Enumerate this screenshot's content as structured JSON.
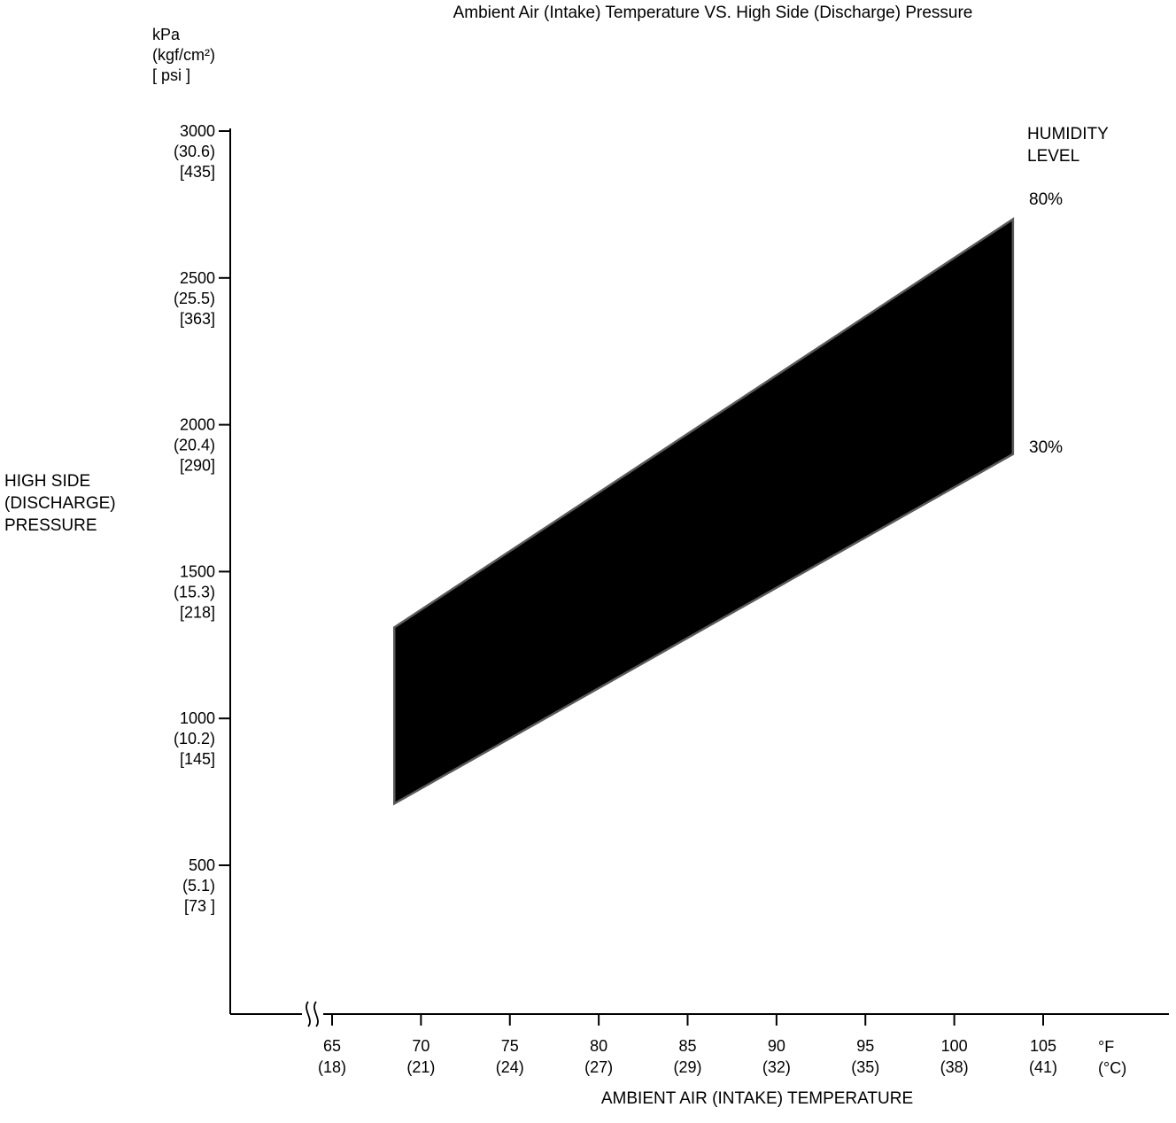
{
  "chart_data": {
    "type": "area",
    "title": "Ambient Air (Intake) Temperature VS. High Side (Discharge) Pressure",
    "xlabel": "AMBIENT AIR (INTAKE) TEMPERATURE",
    "ylabel": "HIGH SIDE (DISCHARGE) PRESSURE",
    "x_unit": "°F (°C)",
    "y_unit": "kPa (kgf/cm²) [ psi ]",
    "xlim": [
      59,
      112
    ],
    "ylim": [
      0,
      3000
    ],
    "grid": false,
    "x_axis_break_near_origin": true,
    "legend_title": "HUMIDITY LEVEL",
    "band_fill_between_series": true,
    "x_ticks_f": [
      65,
      70,
      75,
      80,
      85,
      90,
      95,
      100,
      105
    ],
    "x_ticks_c": [
      18,
      21,
      24,
      27,
      29,
      32,
      35,
      38,
      41
    ],
    "y_ticks_kpa": [
      3000,
      2500,
      2000,
      1500,
      1000,
      500
    ],
    "y_ticks_kgfcm2": [
      30.6,
      25.5,
      20.4,
      15.3,
      10.2,
      5.1
    ],
    "y_ticks_psi": [
      435,
      363,
      290,
      218,
      145,
      73
    ],
    "series": [
      {
        "name": "80%",
        "x_f": [
          68.5,
          103.3
        ],
        "y_kpa": [
          1310,
          2700
        ]
      },
      {
        "name": "30%",
        "x_f": [
          68.5,
          103.3
        ],
        "y_kpa": [
          710,
          1900
        ]
      }
    ]
  },
  "y_axis": {
    "unit_lines": [
      "kPa",
      "(kgf/cm²)",
      "[ psi ]"
    ],
    "title_lines": [
      "HIGH SIDE",
      "(DISCHARGE)",
      "PRESSURE"
    ],
    "ticks": [
      {
        "kpa": 3000,
        "lines": [
          "3000",
          "(30.6)",
          "[435]"
        ]
      },
      {
        "kpa": 2500,
        "lines": [
          "2500",
          "(25.5)",
          "[363]"
        ]
      },
      {
        "kpa": 2000,
        "lines": [
          "2000",
          "(20.4)",
          "[290]"
        ]
      },
      {
        "kpa": 1500,
        "lines": [
          "1500",
          "(15.3)",
          "[218]"
        ]
      },
      {
        "kpa": 1000,
        "lines": [
          "1000",
          "(10.2)",
          "[145]"
        ]
      },
      {
        "kpa": 500,
        "lines": [
          "500",
          "(5.1)",
          "[73 ]"
        ]
      }
    ]
  },
  "x_axis": {
    "label": "AMBIENT AIR (INTAKE) TEMPERATURE",
    "unit_lines": [
      "°F",
      "(°C)"
    ],
    "ticks": [
      {
        "f": 65,
        "lines": [
          "65",
          "(18)"
        ]
      },
      {
        "f": 70,
        "lines": [
          "70",
          "(21)"
        ]
      },
      {
        "f": 75,
        "lines": [
          "75",
          "(24)"
        ]
      },
      {
        "f": 80,
        "lines": [
          "80",
          "(27)"
        ]
      },
      {
        "f": 85,
        "lines": [
          "85",
          "(29)"
        ]
      },
      {
        "f": 90,
        "lines": [
          "90",
          "(32)"
        ]
      },
      {
        "f": 95,
        "lines": [
          "95",
          "(35)"
        ]
      },
      {
        "f": 100,
        "lines": [
          "100",
          "(38)"
        ]
      },
      {
        "f": 105,
        "lines": [
          "105",
          "(41)"
        ]
      }
    ]
  },
  "legend": {
    "title_lines": [
      "HUMIDITY",
      "LEVEL"
    ],
    "upper_label": "80%",
    "lower_label": "30%"
  },
  "colors": {
    "band": "#000000",
    "band_edge": "#5a5a5a",
    "axis": "#000000",
    "text": "#000000",
    "background": "#ffffff"
  }
}
